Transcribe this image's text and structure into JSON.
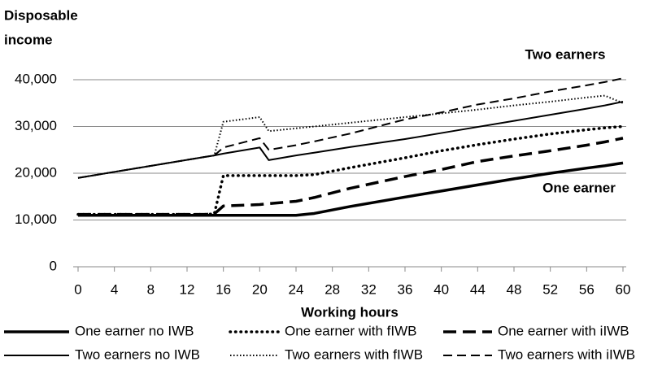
{
  "chart_data": {
    "type": "line",
    "ylabel": [
      "Disposable",
      "income"
    ],
    "xlabel": "Working hours",
    "annotations": [
      "Two earners",
      "One earner"
    ],
    "x": [
      0,
      14,
      15,
      16,
      20,
      21,
      24,
      26,
      30,
      36,
      40,
      44,
      48,
      52,
      56,
      58,
      60
    ],
    "xlim": [
      0,
      60
    ],
    "xticks": [
      0,
      4,
      8,
      12,
      16,
      20,
      24,
      28,
      32,
      36,
      40,
      44,
      48,
      52,
      56,
      60
    ],
    "ylim": [
      0,
      40000
    ],
    "yticks": [
      0,
      {
        "value": 10000,
        "label": "10,000"
      },
      {
        "value": 20000,
        "label": "20,000"
      },
      {
        "value": 30000,
        "label": "30,000"
      },
      {
        "value": 40000,
        "label": "40,000"
      }
    ],
    "grid": true,
    "legend": "bottom",
    "series": [
      {
        "name": "One earner no IWB",
        "color": "#000000",
        "style": "solid",
        "width": 3.5,
        "values": [
          11000,
          11000,
          11000,
          11000,
          11000,
          11000,
          11000,
          11400,
          12900,
          14900,
          16200,
          17500,
          18800,
          20000,
          21100,
          21600,
          22200
        ]
      },
      {
        "name": "One earner with fIWB",
        "color": "#000000",
        "style": "dotted",
        "width": 3.5,
        "values": [
          11200,
          11200,
          11300,
          19500,
          19500,
          19500,
          19500,
          19700,
          21200,
          23300,
          24800,
          26100,
          27300,
          28400,
          29300,
          29700,
          30000
        ]
      },
      {
        "name": "One earner with iIWB",
        "color": "#000000",
        "style": "dashed",
        "width": 3.5,
        "values": [
          11200,
          11200,
          11300,
          13000,
          13300,
          13500,
          14000,
          14800,
          16800,
          19300,
          20800,
          22500,
          23700,
          24800,
          26000,
          26700,
          27500
        ]
      },
      {
        "name": "Two earners no IWB",
        "color": "#000000",
        "style": "solid",
        "width": 2,
        "values": [
          19000,
          23500,
          23800,
          24200,
          25500,
          22800,
          23800,
          24400,
          25600,
          27300,
          28600,
          29900,
          31200,
          32500,
          33800,
          34500,
          35300
        ]
      },
      {
        "name": "Two earners with fIWB",
        "color": "#000000",
        "style": "dotted",
        "width": 2,
        "values": [
          19000,
          23500,
          23800,
          31000,
          32000,
          29000,
          29600,
          30000,
          30800,
          32000,
          32800,
          33600,
          34500,
          35300,
          36200,
          36600,
          35000
        ]
      },
      {
        "name": "Two earners with iIWB",
        "color": "#000000",
        "style": "dashed",
        "width": 2,
        "values": [
          19000,
          23500,
          23800,
          25500,
          27500,
          25000,
          26000,
          26800,
          28500,
          31500,
          33000,
          34700,
          36000,
          37500,
          38800,
          39500,
          40300
        ]
      }
    ]
  }
}
